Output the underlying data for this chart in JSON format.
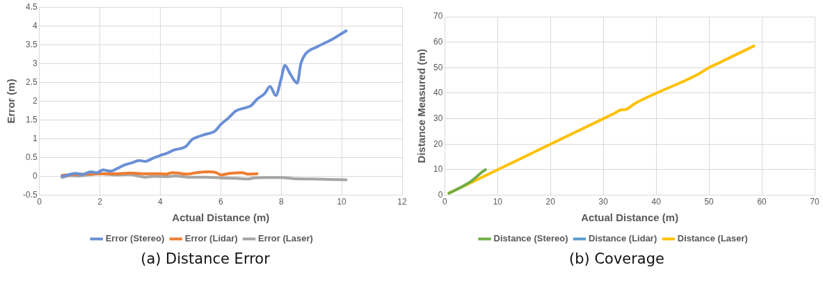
{
  "chart_data": [
    {
      "type": "line",
      "title": "(a) Distance Error",
      "xlabel": "Actual Distance (m)",
      "ylabel": "Error (m)",
      "xlim": [
        0,
        12
      ],
      "xticks": [
        0,
        2,
        4,
        6,
        8,
        10,
        12
      ],
      "ylim": [
        -0.5,
        4.5
      ],
      "yticks": [
        -0.5,
        0,
        0.5,
        1,
        1.5,
        2,
        2.5,
        3,
        3.5,
        4,
        4.5
      ],
      "grid": true,
      "legend": "bottom",
      "marker": "none",
      "line_style": "solid",
      "series": [
        {
          "name": "Error (Stereo)",
          "color": "#6a8fd6",
          "x": [
            0.75,
            1.0,
            1.2,
            1.4,
            1.7,
            1.9,
            2.1,
            2.35,
            2.6,
            2.8,
            3.05,
            3.3,
            3.5,
            3.75,
            4.0,
            4.2,
            4.45,
            4.85,
            5.05,
            5.2,
            5.5,
            5.8,
            6.0,
            6.25,
            6.5,
            6.8,
            7.0,
            7.2,
            7.45,
            7.63,
            7.82,
            8.0,
            8.12,
            8.3,
            8.53,
            8.65,
            8.8,
            9.2,
            9.7,
            10.15
          ],
          "values": [
            0.0,
            0.05,
            0.08,
            0.05,
            0.12,
            0.1,
            0.17,
            0.14,
            0.22,
            0.3,
            0.36,
            0.42,
            0.4,
            0.48,
            0.56,
            0.61,
            0.7,
            0.8,
            0.98,
            1.04,
            1.12,
            1.2,
            1.38,
            1.55,
            1.74,
            1.82,
            1.88,
            2.05,
            2.2,
            2.39,
            2.15,
            2.6,
            2.95,
            2.72,
            2.48,
            3.0,
            3.25,
            3.45,
            3.65,
            3.87
          ]
        },
        {
          "name": "Error (Lidar)",
          "color": "#ed7d31",
          "x": [
            0.75,
            1.5,
            2.0,
            2.5,
            3.0,
            3.5,
            4.0,
            4.2,
            4.4,
            4.9,
            5.2,
            5.6,
            5.85,
            6.0,
            6.3,
            6.7,
            6.9,
            7.2
          ],
          "values": [
            0.03,
            0.06,
            0.07,
            0.07,
            0.09,
            0.07,
            0.07,
            0.06,
            0.1,
            0.06,
            0.1,
            0.12,
            0.1,
            0.04,
            0.08,
            0.1,
            0.06,
            0.07
          ]
        },
        {
          "name": "Error (Laser)",
          "color": "#a5a5a5",
          "x": [
            0.75,
            1.0,
            1.3,
            2.0,
            2.5,
            3.0,
            3.2,
            3.5,
            3.8,
            4.2,
            4.5,
            4.9,
            5.5,
            6.0,
            6.5,
            6.9,
            7.1,
            7.5,
            8.0,
            8.4,
            9.0,
            10.15
          ],
          "values": [
            -0.03,
            0.02,
            0.01,
            0.07,
            0.04,
            0.05,
            0.02,
            -0.02,
            0.0,
            -0.01,
            0.01,
            -0.02,
            -0.02,
            -0.04,
            -0.05,
            -0.07,
            -0.04,
            -0.03,
            -0.03,
            -0.06,
            -0.07,
            -0.09
          ]
        }
      ]
    },
    {
      "type": "line",
      "title": "(b) Coverage",
      "xlabel": "Actual Distance (m)",
      "ylabel": "Distance Measured (m)",
      "xlim": [
        0,
        70
      ],
      "xticks": [
        0,
        10,
        20,
        30,
        40,
        50,
        60,
        70
      ],
      "ylim": [
        0,
        70
      ],
      "yticks": [
        0,
        10,
        20,
        30,
        40,
        50,
        60,
        70
      ],
      "grid": true,
      "legend": "bottom",
      "marker": "none",
      "line_style": "solid",
      "series": [
        {
          "name": "Distance (Stereo)",
          "color": "#70ad47",
          "x": [
            0.8,
            3,
            5,
            7,
            7.7
          ],
          "values": [
            0.8,
            3,
            5.5,
            9,
            10
          ]
        },
        {
          "name": "Distance (Lidar)",
          "color": "#5b9bd5"
        },
        {
          "name": "Distance (Laser)",
          "color": "#ffc000",
          "x": [
            0.8,
            10,
            20,
            30,
            32,
            33.5,
            34,
            36,
            40,
            45,
            48,
            50,
            52,
            54,
            58.5
          ],
          "values": [
            0.8,
            10,
            20,
            30,
            32,
            33.5,
            33.5,
            36,
            40,
            44.5,
            47.5,
            50,
            52,
            54,
            58.5
          ]
        }
      ]
    }
  ]
}
